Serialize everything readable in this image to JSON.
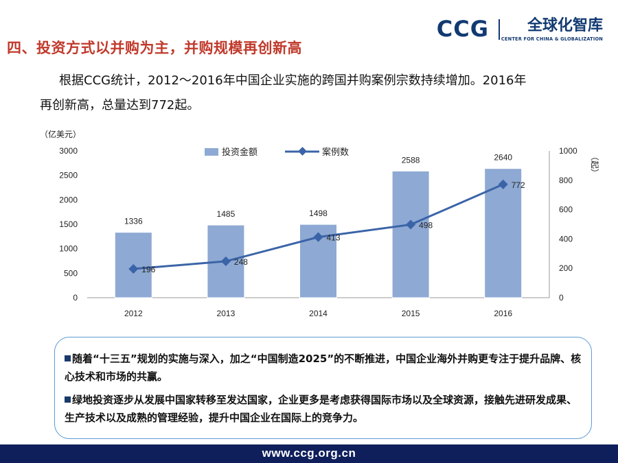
{
  "header": {
    "title": "四、投资方式以并购为主，并购规模再创新高",
    "brand_mark": "CCG",
    "brand_name": "全球化智库",
    "brand_sub": "CENTER FOR CHINA & GLOBALIZATION"
  },
  "intro": {
    "line1": "根据CCG统计，2012～2016年中国企业实施的跨国并购案例宗数持续增加。2016年",
    "line2": "再创新高，总量达到772起。"
  },
  "chart_data": {
    "type": "bar",
    "categories": [
      "2012",
      "2013",
      "2014",
      "2015",
      "2016"
    ],
    "series": [
      {
        "name": "投资金额",
        "type": "bar",
        "axis": "left",
        "values": [
          1336,
          1485,
          1498,
          2588,
          2640
        ],
        "color": "#8ea9d3"
      },
      {
        "name": "案例数",
        "type": "line",
        "axis": "right",
        "values": [
          196,
          248,
          413,
          498,
          772
        ],
        "color": "#3b64a8"
      }
    ],
    "ylabel": "（亿美元）",
    "y2label": "（起）",
    "ylim": [
      0,
      3000
    ],
    "y2lim": [
      0,
      1000
    ],
    "yticks": [
      0,
      500,
      1000,
      1500,
      2000,
      2500,
      3000
    ],
    "y2ticks": [
      0,
      200,
      400,
      600,
      800,
      1000
    ],
    "legend": "top-center",
    "grid": false,
    "data_labels": true
  },
  "bullets": [
    {
      "text": "随着“十三五”规划的实施与深入，加之“中国制造2025”的不断推进，中国企业海外并购更专注于提升品牌、核心技术和市场的共赢。"
    },
    {
      "text": "绿地投资逐步从发展中国家转移至发达国家，企业更多是考虑获得国际市场以及全球资源，接触先进研发成果、生产技术以及成熟的管理经验，提升中国企业在国际上的竞争力。"
    }
  ],
  "footer": {
    "url": "www.ccg.org.cn"
  },
  "colors": {
    "title_red": "#c0392b",
    "brand_navy": "#123a72",
    "footer_bg": "#0f1f5c",
    "box_border": "#5b9bd5"
  }
}
